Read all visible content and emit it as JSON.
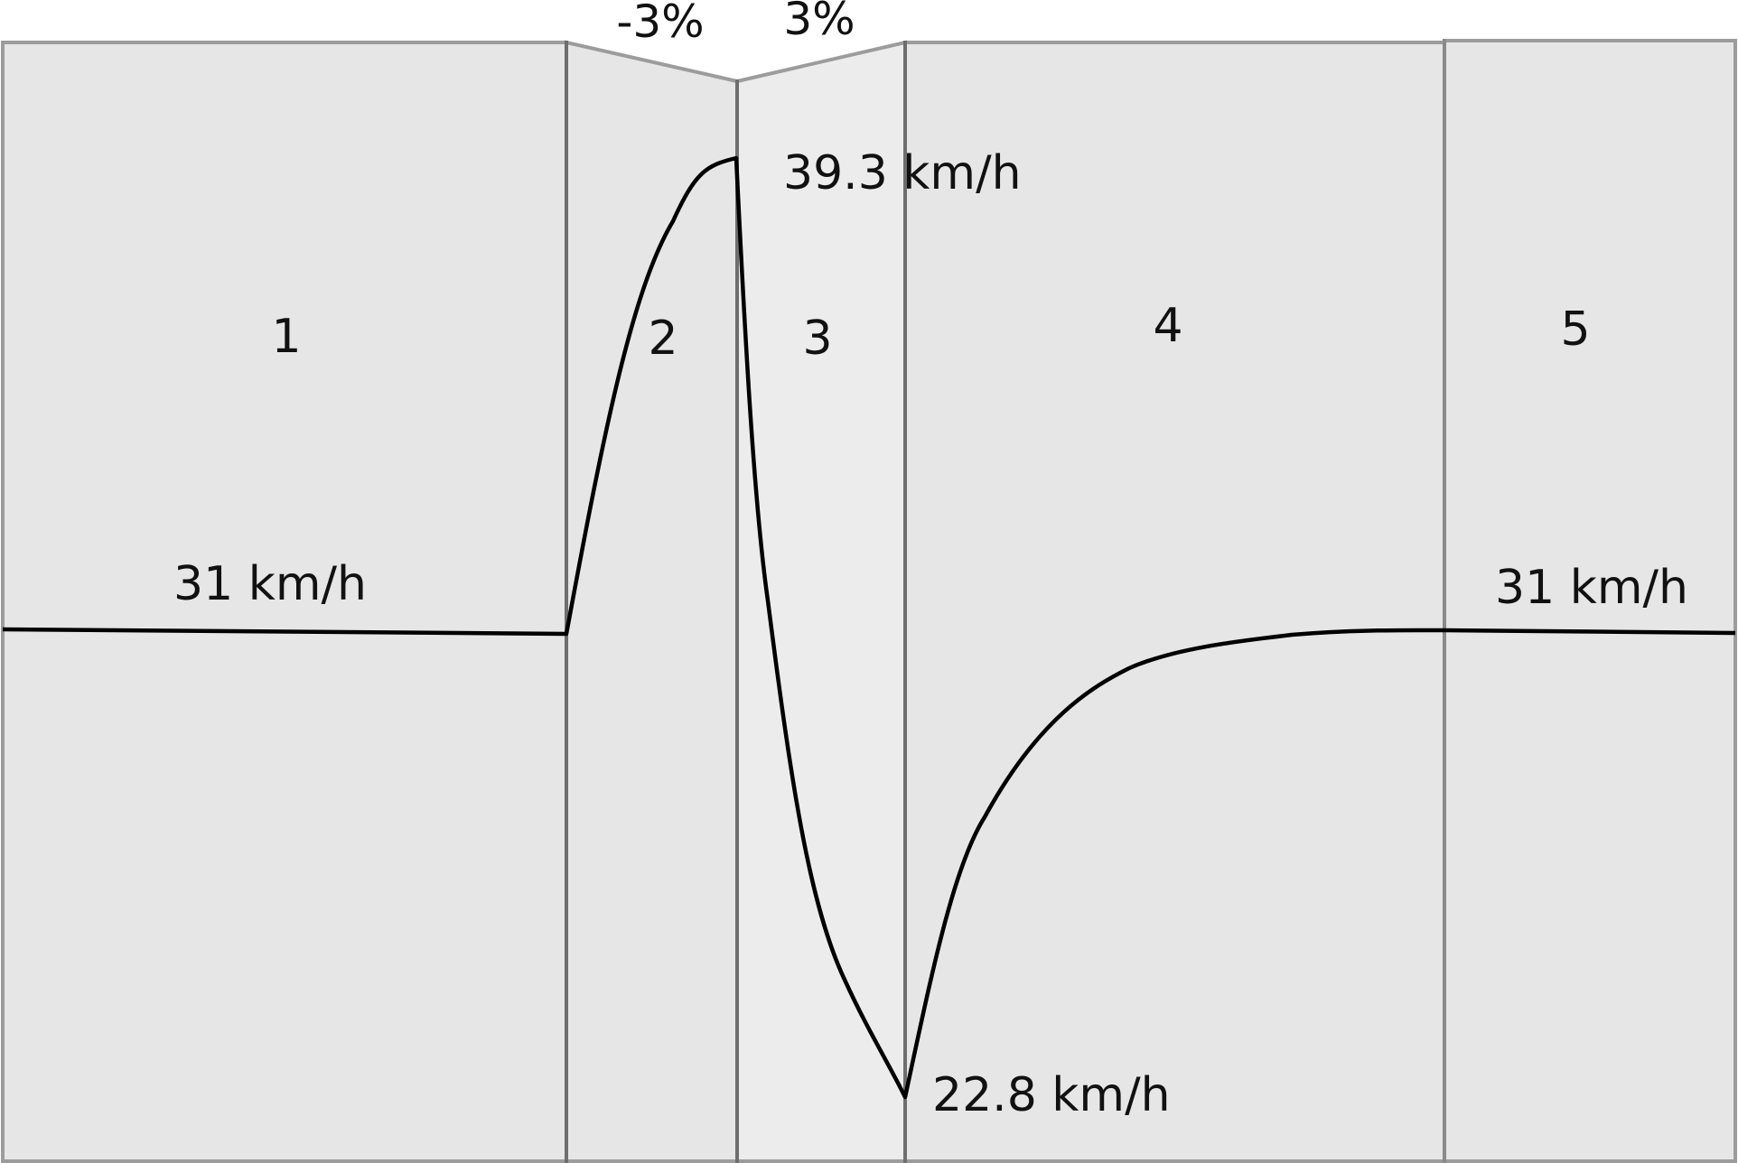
{
  "colors": {
    "panel_fill": "#e6e6e6",
    "panel_fill_light": "#ececec",
    "panel_border": "#6e6e6e",
    "outer_border": "#9c9c9c",
    "curve": "#000000",
    "text": "#111111",
    "background": "#ffffff"
  },
  "segments": [
    {
      "label": "1"
    },
    {
      "label": "2"
    },
    {
      "label": "3"
    },
    {
      "label": "4"
    },
    {
      "label": "5"
    }
  ],
  "grades": {
    "downhill": "-3%",
    "uphill": "3%"
  },
  "speeds": {
    "initial": "31 km/h",
    "peak": "39.3 km/h",
    "minimum": "22.8 km/h",
    "final": "31 km/h"
  }
}
